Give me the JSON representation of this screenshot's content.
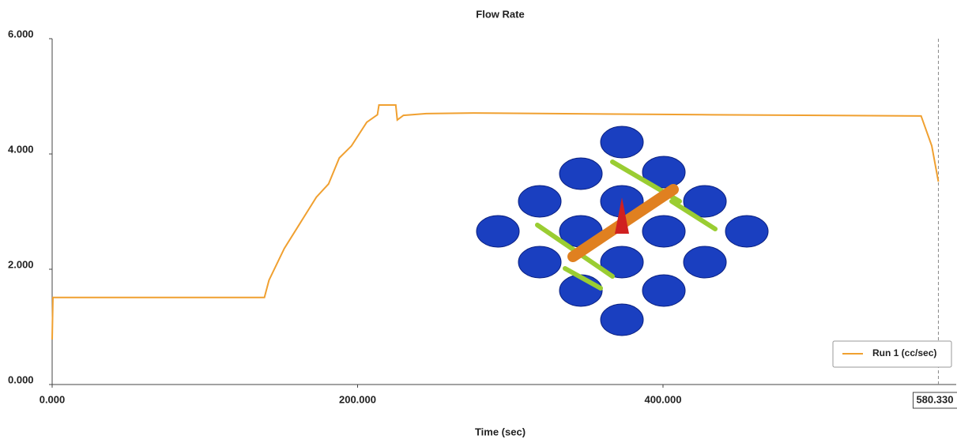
{
  "chart_data": {
    "type": "line",
    "title": "Flow Rate",
    "x_label": "Time (sec)",
    "xlim": [
      0,
      592
    ],
    "ylim": [
      0,
      6
    ],
    "xticks": [
      {
        "value": 0,
        "label": "0.000"
      },
      {
        "value": 200,
        "label": "200.000"
      },
      {
        "value": 400,
        "label": "400.000"
      }
    ],
    "yticks": [
      {
        "value": 0,
        "label": "0.000"
      },
      {
        "value": 2,
        "label": "2.000"
      },
      {
        "value": 4,
        "label": "4.000"
      },
      {
        "value": 6,
        "label": "6.000"
      }
    ],
    "grid": false,
    "legend": "lower right",
    "cursor": {
      "value": 580.33,
      "label": "580.330"
    },
    "x": [
      0,
      0.5,
      139,
      142,
      152,
      173,
      181,
      188,
      196,
      206,
      213,
      214,
      225,
      226,
      230,
      245,
      276,
      432,
      569,
      576,
      580.33
    ],
    "series": [
      {
        "name": "Run 1 (cc/sec)",
        "color": "#f0a030",
        "values": [
          0.78,
          1.51,
          1.51,
          1.81,
          2.36,
          3.25,
          3.48,
          3.93,
          4.14,
          4.55,
          4.68,
          4.85,
          4.85,
          4.59,
          4.67,
          4.7,
          4.71,
          4.68,
          4.66,
          4.14,
          3.52
        ]
      }
    ]
  }
}
